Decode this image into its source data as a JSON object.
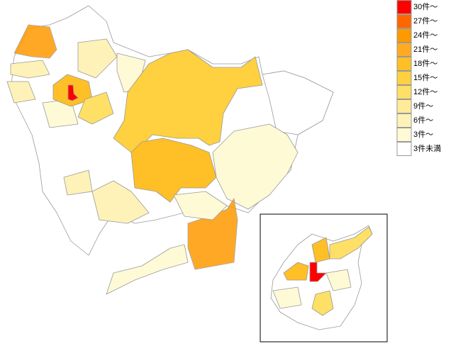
{
  "legend": {
    "items": [
      {
        "label": "30件～",
        "color": "#ff0000"
      },
      {
        "label": "27件～",
        "color": "#ff6600"
      },
      {
        "label": "24件～",
        "color": "#ff9900"
      },
      {
        "label": "21件～",
        "color": "#ffaa22"
      },
      {
        "label": "18件～",
        "color": "#ffbf26"
      },
      {
        "label": "15件～",
        "color": "#ffd040"
      },
      {
        "label": "12件～",
        "color": "#ffe066"
      },
      {
        "label": "9件～",
        "color": "#ffeb99"
      },
      {
        "label": "6件～",
        "color": "#fff2b8"
      },
      {
        "label": "3件～",
        "color": "#fffad6"
      },
      {
        "label": "3件未満",
        "color": "#ffffff"
      }
    ]
  }
}
